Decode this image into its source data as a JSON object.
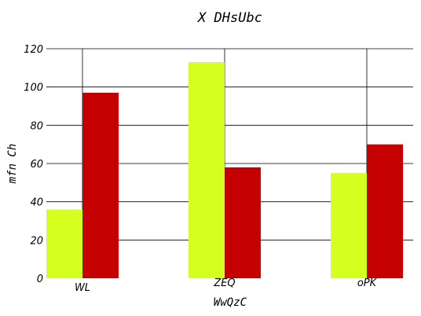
{
  "chart_data": {
    "type": "bar",
    "title": "X DHsUbc",
    "xlabel": "WwQzC",
    "ylabel": "mfn Ch",
    "categories": [
      "WL",
      "ZEQ",
      "oPK"
    ],
    "category_label_sizes": [
      "large",
      "small",
      "small"
    ],
    "series": [
      {
        "values": [
          36,
          113,
          55
        ],
        "color": "#d4ff1f"
      },
      {
        "values": [
          97,
          58,
          70
        ],
        "color": "#c40000"
      }
    ],
    "ylim": [
      0,
      120
    ],
    "yticks": [
      0,
      20,
      40,
      60,
      80,
      100,
      120
    ],
    "grid": true
  }
}
